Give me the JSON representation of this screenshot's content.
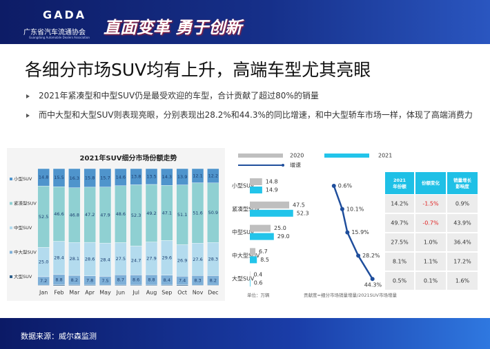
{
  "header": {
    "logo": "GADA",
    "org": "广东省汽车流通协会",
    "org_en": "Guangdong Automobile Dealers Association",
    "slogan": "直面变革 勇于创新"
  },
  "title": "各细分市场SUV均有上升，高端车型尤其亮眼",
  "bullets": [
    "2021年紧凑型和中型SUV仍是最受欢迎的车型，合计贡献了超过80%的销量",
    "而中大型和大型SUV则表现亮眼，分别表现出28.2%和44.3%的同比增速，和中大型轿车市场一样，体现了高端消费力"
  ],
  "chart_data": [
    {
      "type": "stacked_bar",
      "title": "2021年SUV细分市场份额走势",
      "categories": [
        "Jan",
        "Feb",
        "Mar",
        "Apr",
        "May",
        "Jun",
        "Jul",
        "Aug",
        "Sep",
        "Oct",
        "Nov",
        "Dec"
      ],
      "ylim": [
        0,
        100
      ],
      "series": [
        {
          "name": "大型SUV",
          "color": "#2e5f8a",
          "values": [
            0.5,
            0.7,
            0.6,
            0.6,
            0.5,
            0.6,
            0.6,
            0.6,
            0.6,
            0.7,
            0.4,
            0.4
          ]
        },
        {
          "name": "中大型SUV",
          "color": "#7fb0d8",
          "values": [
            7.2,
            8.8,
            8.2,
            7.8,
            7.5,
            8.7,
            8.6,
            8.8,
            8.4,
            7.4,
            8.3,
            8.2
          ]
        },
        {
          "name": "中型SUV",
          "color": "#b3dbee",
          "values": [
            25.0,
            28.4,
            28.1,
            28.6,
            28.4,
            27.5,
            24.7,
            27.9,
            29.6,
            26.9,
            27.6,
            28.3
          ],
          "value_labels": [
            "25.0",
            "28.4",
            "28.1",
            "28.6",
            "28.4",
            "27.5",
            "24.7",
            "27.9",
            "29.6",
            "26.9",
            "27.6",
            "28.3"
          ]
        },
        {
          "name": "紧凑型SUV",
          "color": "#8fd0d2",
          "values": [
            52.5,
            46.6,
            46.8,
            47.2,
            47.9,
            48.6,
            52.3,
            49.2,
            47.1,
            51.1,
            51.6,
            50.9
          ]
        },
        {
          "name": "小型SUV",
          "color": "#4f94cc",
          "values": [
            14.8,
            15.5,
            16.3,
            15.8,
            15.7,
            14.6,
            13.8,
            13.5,
            14.3,
            13.9,
            12.1,
            12.2
          ]
        }
      ]
    },
    {
      "type": "hbar",
      "categories": [
        "小型SUV",
        "紧凑型SUV",
        "中型SUV",
        "中大型SUV",
        "大型SUV"
      ],
      "xlim": [
        0,
        60
      ],
      "x2lim": [
        0,
        50
      ],
      "unit": "单位：万辆",
      "annotation": "贡献度=细分市场销量增量/2021SUV市场增量",
      "series": [
        {
          "name": "2020",
          "color": "#bfbfbf",
          "values": [
            14.8,
            47.5,
            25.0,
            6.7,
            0.4
          ],
          "value_labels": [
            "14.8",
            "47.5",
            "25.0",
            "6.7",
            "0.4"
          ]
        },
        {
          "name": "2021",
          "color": "#22c4ea",
          "values": [
            14.9,
            52.3,
            29.0,
            8.5,
            0.6
          ],
          "value_labels": [
            "14.9",
            "52.3",
            "29.0",
            "8.5",
            "0.6"
          ]
        },
        {
          "name": "增速",
          "color": "#1f4e9c",
          "axis": "x2",
          "values": [
            0.6,
            10.1,
            15.9,
            28.2,
            44.3
          ],
          "value_labels": [
            "0.6%",
            "10.1%",
            "15.9%",
            "28.2%",
            "44.3%"
          ]
        }
      ]
    }
  ],
  "table": {
    "header": [
      "2021年份额",
      "份额变化",
      "销量增长影响度"
    ],
    "rows": [
      [
        "14.2%",
        "-1.5%",
        "0.9%"
      ],
      [
        "49.7%",
        "-0.7%",
        "43.9%"
      ],
      [
        "27.5%",
        "1.0%",
        "36.4%"
      ],
      [
        "8.1%",
        "1.1%",
        "17.2%"
      ],
      [
        "0.5%",
        "0.1%",
        "1.6%"
      ]
    ]
  },
  "footer": "数据来源：威尔森监测"
}
